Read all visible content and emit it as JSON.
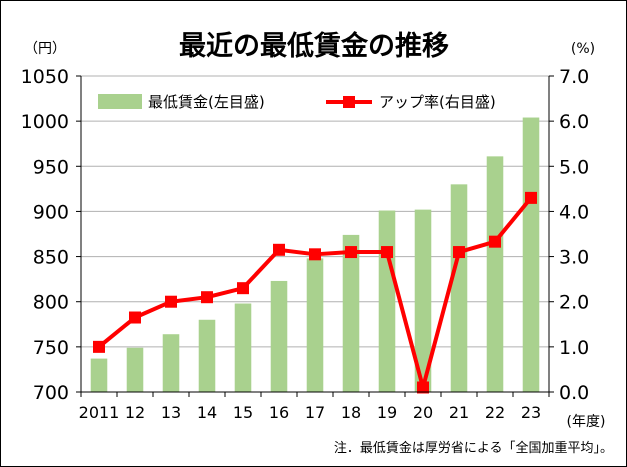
{
  "chart_data": {
    "type": "bar+line",
    "title": "最近の最低賃金の推移",
    "left_unit": "（円）",
    "right_unit": "(%)",
    "x_unit": "(年度)",
    "note": "注．最低賃金は厚労省による「全国加重平均」。",
    "categories": [
      "2011",
      "12",
      "13",
      "14",
      "15",
      "16",
      "17",
      "18",
      "19",
      "20",
      "21",
      "22",
      "23"
    ],
    "left_axis": {
      "ylim": [
        700,
        1050
      ],
      "ticks": [
        "700",
        "750",
        "800",
        "850",
        "900",
        "950",
        "1000",
        "1050"
      ]
    },
    "right_axis": {
      "ylim": [
        0,
        7
      ],
      "ticks": [
        "0.0",
        "1.0",
        "2.0",
        "3.0",
        "4.0",
        "5.0",
        "6.0",
        "7.0"
      ]
    },
    "grid": "horizontal",
    "legend_position": "top",
    "series": [
      {
        "name": "最低賃金(左目盛)",
        "kind": "bar",
        "axis": "left",
        "color": "#a9d18e",
        "values": [
          737,
          749,
          764,
          780,
          798,
          823,
          848,
          874,
          901,
          902,
          930,
          961,
          1004
        ]
      },
      {
        "name": "アップ率(右目盛)",
        "kind": "line",
        "axis": "right",
        "color": "#ff0000",
        "marker_color": "#ff0000",
        "values": [
          1.0,
          1.65,
          2.0,
          2.1,
          2.3,
          3.15,
          3.05,
          3.1,
          3.1,
          0.1,
          3.1,
          3.33,
          4.3
        ]
      }
    ]
  }
}
